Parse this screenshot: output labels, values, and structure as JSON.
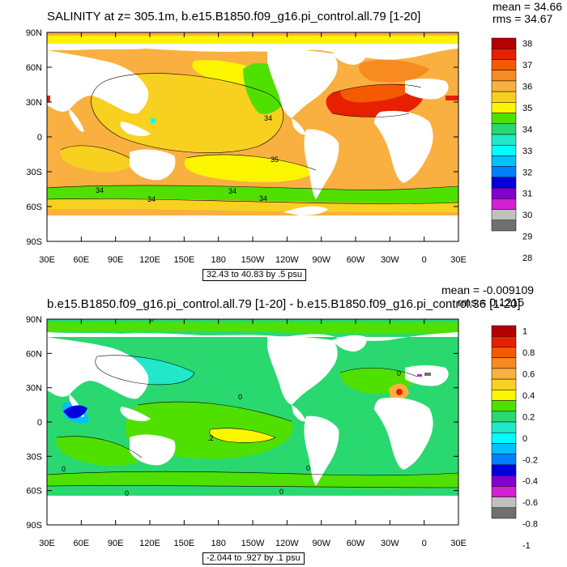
{
  "panels": [
    {
      "title": "SALINITY at z= 305.1m, b.e15.B1850.f09_g16.pi_control.all.79 [1-20]",
      "mean": "mean = 34.66",
      "rms": "rms = 34.67",
      "range": "32.43 to 40.83 by .5 psu",
      "contour_labels": [
        "34",
        "34",
        "34",
        "34",
        "34",
        "35"
      ],
      "colorbar": {
        "labels": [
          "38",
          "37",
          "36",
          "35",
          "34",
          "33",
          "32",
          "31",
          "30",
          "29",
          "28"
        ],
        "colors": [
          "#b40000",
          "#e62000",
          "#f45a00",
          "#f78a20",
          "#f9b040",
          "#f8d020",
          "#fbf500",
          "#50e000",
          "#2ad870",
          "#20e8c8",
          "#00ffff",
          "#00c0ff",
          "#0080ff",
          "#0000e0",
          "#8000d0",
          "#d020d0",
          "#c0c0c0",
          "#707070"
        ]
      }
    },
    {
      "title": "b.e15.B1850.f09_g16.pi_control.all.79 [1-20] - b.e15.B1850.f09_g16.pi_control.36 [1-20]",
      "mean": "mean = -0.009109",
      "rms": "rms = 0.1215",
      "range": "-2.044 to .927 by .1 psu",
      "contour_labels": [
        "0",
        "0",
        "0",
        "0",
        "0",
        "0",
        "0",
        ".2"
      ],
      "colorbar": {
        "labels": [
          "1",
          "0.8",
          "0.6",
          "0.4",
          "0.2",
          "0",
          "-0.2",
          "-0.4",
          "-0.6",
          "-0.8",
          "-1"
        ],
        "colors": [
          "#b40000",
          "#e62000",
          "#f45a00",
          "#f78a20",
          "#f9b040",
          "#f8d020",
          "#fbf500",
          "#50e000",
          "#2ad870",
          "#20e8c8",
          "#00ffff",
          "#00c0ff",
          "#0080ff",
          "#0000e0",
          "#8000d0",
          "#d020d0",
          "#c0c0c0",
          "#707070"
        ]
      }
    }
  ],
  "axes": {
    "lat_labels": [
      "90N",
      "60N",
      "30N",
      "0",
      "30S",
      "60S",
      "90S"
    ],
    "lon_labels": [
      "30E",
      "60E",
      "90E",
      "120E",
      "150E",
      "180",
      "150W",
      "120W",
      "90W",
      "60W",
      "30W",
      "0",
      "30E"
    ]
  },
  "colors": {
    "land": "#ffffff",
    "frame": "#000000"
  }
}
